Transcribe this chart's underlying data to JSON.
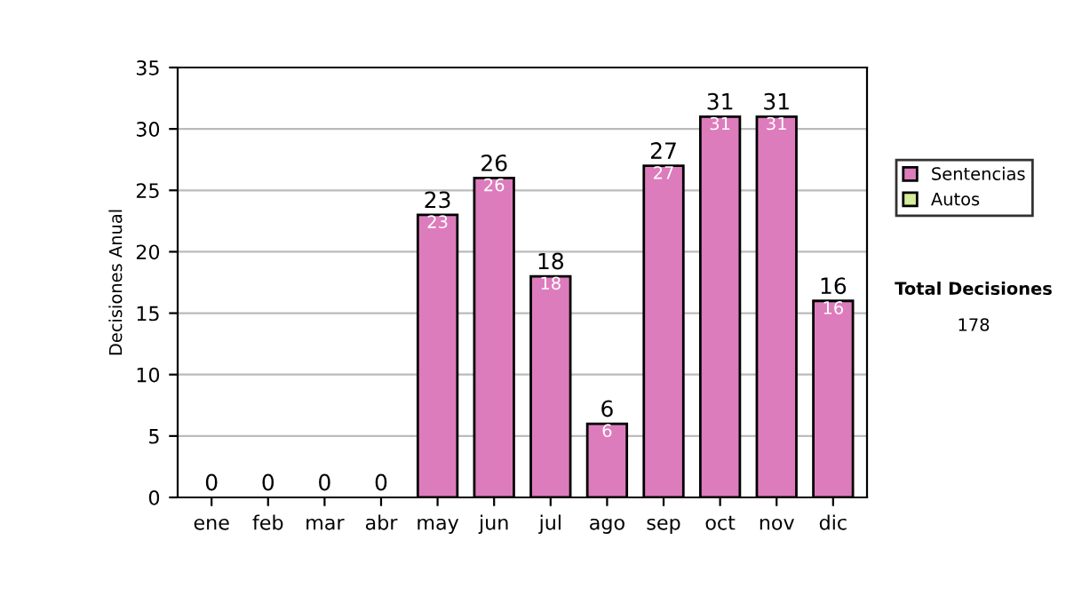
{
  "chart_data": {
    "type": "bar",
    "stacked": true,
    "ylabel": "Decisiones Anual",
    "categories": [
      "ene",
      "feb",
      "mar",
      "abr",
      "may",
      "jun",
      "jul",
      "ago",
      "sep",
      "oct",
      "nov",
      "dic"
    ],
    "series": [
      {
        "name": "Sentencias",
        "color": "#dd7cbc",
        "values": [
          0,
          0,
          0,
          0,
          23,
          26,
          18,
          6,
          27,
          31,
          31,
          16
        ],
        "value_labels": [
          null,
          null,
          null,
          null,
          "23",
          "26",
          "18",
          "6",
          "27",
          "31",
          "31",
          "16"
        ]
      },
      {
        "name": "Autos",
        "color": "#d4ec9c",
        "values": [
          0,
          0,
          0,
          0,
          0,
          0,
          0,
          0,
          0,
          0,
          0,
          0
        ]
      }
    ],
    "totals": [
      "0",
      "0",
      "0",
      "0",
      "23",
      "26",
      "18",
      "6",
      "27",
      "31",
      "31",
      "16"
    ],
    "ylim": [
      0,
      35
    ],
    "yticks": [
      0,
      5,
      10,
      15,
      20,
      25,
      30,
      35
    ],
    "grid": "y",
    "legend": "right",
    "annotations": [
      "Total Decisiones",
      "178"
    ]
  }
}
